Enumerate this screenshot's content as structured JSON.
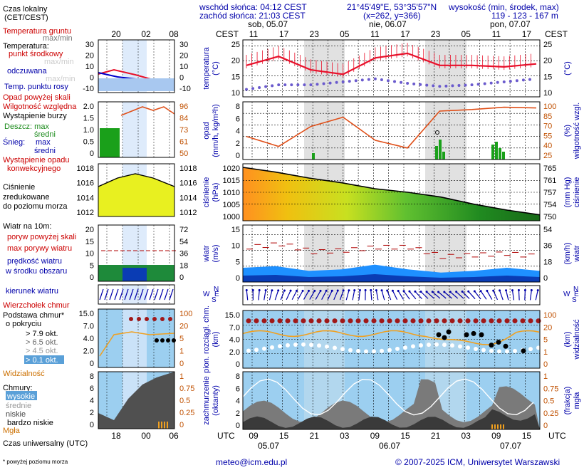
{
  "header": {
    "sunrise": "wschód słońca: 04:12 CEST",
    "sunset": "zachód słońca: 21:03 CEST",
    "coords": "21°45'49\"E, 53°35'57\"N",
    "grid": "(x=262, y=366)",
    "elev_title": "wysokość (min, środek, max)",
    "elev_values": "119 - 123 - 167 m"
  },
  "left_labels": {
    "time_title": "Czas lokalny",
    "time_sub": "(CET/CEST)",
    "soil": "Temperatura gruntu",
    "maxmin": "max/min",
    "temp": "Temperatura:",
    "mid": "punkt środkowy",
    "maxmin2": "max/min",
    "felt": "odczuwana",
    "maxmin3": "max/min",
    "dew": "Temp. punktu rosy",
    "precip_above": "Opad powyżej skali",
    "humidity": "Wilgotność względna",
    "storm": "Wystąpienie burzy",
    "rain": "Deszcz: max",
    "rain_mid": "średni",
    "snow": "Śnieg:",
    "snow_max": "max",
    "snow_mid": "średni",
    "conv1": "Wystąpienie opadu",
    "conv2": "konwekcyjnego",
    "press1": "Ciśnienie",
    "press2": "zredukowane",
    "press3": "do poziomu morza",
    "wind": "Wiatr na 10m:",
    "gust_above": "poryw powyżej skali",
    "gust_max": "max porywy wiatru",
    "wind_mean1": "prędkość wiatru",
    "wind_mean2": "w środku obszaru",
    "wind_dir": "kierunek wiatru",
    "cock": "Wierzchołek chmur",
    "cloudbase1": "Podstawa chmur*",
    "cloudbase2": "o pokryciu",
    "okt1": "> 7.9 okt.",
    "okt2": "> 6.5 okt.",
    "okt3": "> 4.5 okt.",
    "okt4": "> 2.5 okt.",
    "okt5": "> 0.1 okt.",
    "visibility": "Widzialność",
    "clouds": "Chmury:",
    "cl_high": "wysokie",
    "cl_mid": "średnie",
    "cl_low": "niskie",
    "cl_vlow": "bardzo niskie",
    "fog": "Mgła",
    "utc_title": "Czas uniwersalny (UTC)",
    "footnote": "* powyżej poziomu morza"
  },
  "left_ticks": {
    "time_local": [
      "20",
      "02",
      "08"
    ],
    "time_utc": [
      "18",
      "00",
      "06"
    ],
    "temp_left": [
      "30",
      "20",
      "10",
      "0",
      "-10"
    ],
    "temp_right": [
      "30",
      "20",
      "10",
      "0",
      "-10"
    ],
    "precip_left": [
      "2.0",
      "1.5",
      "1.0",
      "0.5",
      "0"
    ],
    "precip_right": [
      "96",
      "84",
      "73",
      "61",
      "50"
    ],
    "press_left": [
      "1018",
      "1016",
      "1014",
      "1012"
    ],
    "press_right": [
      "1018",
      "1016",
      "1014",
      "1012"
    ],
    "wind_left": [
      "20",
      "15",
      "10",
      "5",
      "0"
    ],
    "wind_right": [
      "72",
      "54",
      "36",
      "18",
      "0"
    ],
    "cloud_left": [
      "15.0",
      "7.0",
      "4.0",
      "2.0",
      "0"
    ],
    "cloud_right": [
      "100",
      "20",
      "5",
      "1",
      "0"
    ],
    "cover_left": [
      "8",
      "6",
      "4",
      "2",
      "0"
    ],
    "cover_right": [
      "1",
      "0.75",
      "0.5",
      "0.25",
      "0"
    ]
  },
  "main": {
    "tz_left": "CEST",
    "tz_right": "CEST",
    "utc_left": "UTC",
    "utc_right": "UTC",
    "days_top": [
      "sob, 05.07",
      "nie, 06.07",
      "pon, 07.07"
    ],
    "hours_top": [
      "11",
      "17",
      "23",
      "05",
      "11",
      "17",
      "23",
      "05",
      "11",
      "17"
    ],
    "hours_bottom": [
      "09",
      "15",
      "21",
      "03",
      "09",
      "15",
      "21",
      "03",
      "09",
      "15"
    ],
    "days_bottom": [
      "05.07",
      "06.07",
      "07.07"
    ],
    "panels": {
      "temp": {
        "left_title": [
          "temperatura",
          "(°C)"
        ],
        "right_title": "(°C)",
        "left_ticks": [
          "25",
          "20",
          "15",
          "10"
        ],
        "right_ticks": [
          "25",
          "20",
          "15",
          "10"
        ]
      },
      "precip": {
        "left_title": [
          "opad",
          "(mm/h, kg/m²h)"
        ],
        "right_title": [
          "(%)",
          "wilgotność wzgl."
        ],
        "left_ticks": [
          "8",
          "6",
          "4",
          "2",
          "0"
        ],
        "right_ticks": [
          "100",
          "85",
          "70",
          "55",
          "40",
          "25"
        ]
      },
      "press": {
        "left_title": [
          "ciśnienie",
          "(hPa)"
        ],
        "right_title": [
          "(mm Hg)",
          "ciśnienie"
        ],
        "left_ticks": [
          "1020",
          "1015",
          "1010",
          "1005",
          "1000"
        ],
        "right_ticks": [
          "765",
          "761",
          "757",
          "754",
          "750"
        ]
      },
      "wind": {
        "left_title": [
          "wiatr",
          "(m/s)"
        ],
        "right_title": [
          "(km/h)",
          "wiatr"
        ],
        "left_ticks": [
          "15",
          "10",
          "5",
          "0"
        ],
        "right_ticks": [
          "54",
          "36",
          "18",
          "0"
        ]
      },
      "dir": {
        "compass_left": [
          "N",
          "W",
          "E",
          "S"
        ],
        "compass_right": [
          "N",
          "W",
          "E",
          "S"
        ]
      },
      "cloud": {
        "left_title": [
          "pion. rozciągł. chm.",
          "(km)"
        ],
        "right_title": [
          "(km)",
          "widzialność"
        ],
        "left_ticks": [
          "15.0",
          "7.0",
          "4.0",
          "2.0",
          "0"
        ],
        "right_ticks": [
          "100",
          "20",
          "5",
          "1",
          "0"
        ]
      },
      "cover": {
        "left_title": [
          "zachmurzenie",
          "(oktanty)"
        ],
        "right_title": [
          "(frakcja)",
          "mgła"
        ],
        "left_ticks": [
          "8",
          "6",
          "4",
          "2",
          "0"
        ],
        "right_ticks": [
          "1",
          "0.75",
          "0.5",
          "0.25",
          "0"
        ]
      }
    }
  },
  "footer": {
    "email": "meteo@icm.edu.pl",
    "copyright": "© 2007-2025 ICM, Uniwersytet Warszawski"
  },
  "colors": {
    "temp_line": "#e8102a",
    "dew": "#6a5acd",
    "humidity": "#e0501a",
    "rain": "#1aa01a",
    "pressure_line": "#000000",
    "wind_gust": "#b00000",
    "wind_mean": "#0050d0",
    "wind_arrow": "#0000aa",
    "night_band": "#d9d9d9",
    "sky": "#9ccff0"
  },
  "chart_data": [
    {
      "type": "line",
      "title": "temperatura",
      "x": [
        "11",
        "17",
        "23",
        "05",
        "11",
        "17",
        "23",
        "05",
        "11",
        "17"
      ],
      "series": [
        {
          "name": "punkt środkowy",
          "values": [
            18.5,
            21.5,
            17,
            15.5,
            21,
            22.5,
            18.5,
            18.5,
            18,
            19
          ]
        },
        {
          "name": "Temp. punktu rosy",
          "values": [
            10.5,
            12,
            12,
            13,
            14,
            12.5,
            11.5,
            12,
            13,
            14
          ]
        }
      ],
      "ylim": [
        10,
        27
      ]
    },
    {
      "type": "line",
      "title": "ciśnienie",
      "x": [
        "11",
        "17",
        "23",
        "05",
        "11",
        "17",
        "23",
        "05",
        "11",
        "17"
      ],
      "series": [
        {
          "name": "Ciśnienie",
          "values": [
            1020.5,
            1018.5,
            1016,
            1014,
            1011.5,
            1010,
            1008,
            1005,
            1002.5,
            1000.5
          ]
        }
      ],
      "ylim": [
        998,
        1022
      ]
    },
    {
      "type": "area",
      "title": "wiatr",
      "x": [
        "11",
        "17",
        "23",
        "05",
        "11",
        "17",
        "23",
        "05",
        "11",
        "17"
      ],
      "series": [
        {
          "name": "prędkość wiatru",
          "values": [
            4.5,
            5,
            3.5,
            4,
            5.5,
            4,
            3,
            3.5,
            4.5,
            3.5
          ]
        },
        {
          "name": "max porywy wiatru",
          "values": [
            11,
            12,
            9.5,
            10,
            11,
            11,
            8,
            8.5,
            9,
            8
          ]
        }
      ],
      "ylim": [
        0,
        18
      ]
    },
    {
      "type": "line",
      "title": "wilgotność wzgl.",
      "x": [
        "11",
        "17",
        "23",
        "05",
        "11",
        "17",
        "23",
        "05",
        "11",
        "17"
      ],
      "series": [
        {
          "name": "Wilgotność względna",
          "values": [
            55,
            42,
            68,
            80,
            50,
            40,
            88,
            90,
            93,
            92
          ]
        }
      ],
      "ylim": [
        25,
        100
      ]
    }
  ]
}
